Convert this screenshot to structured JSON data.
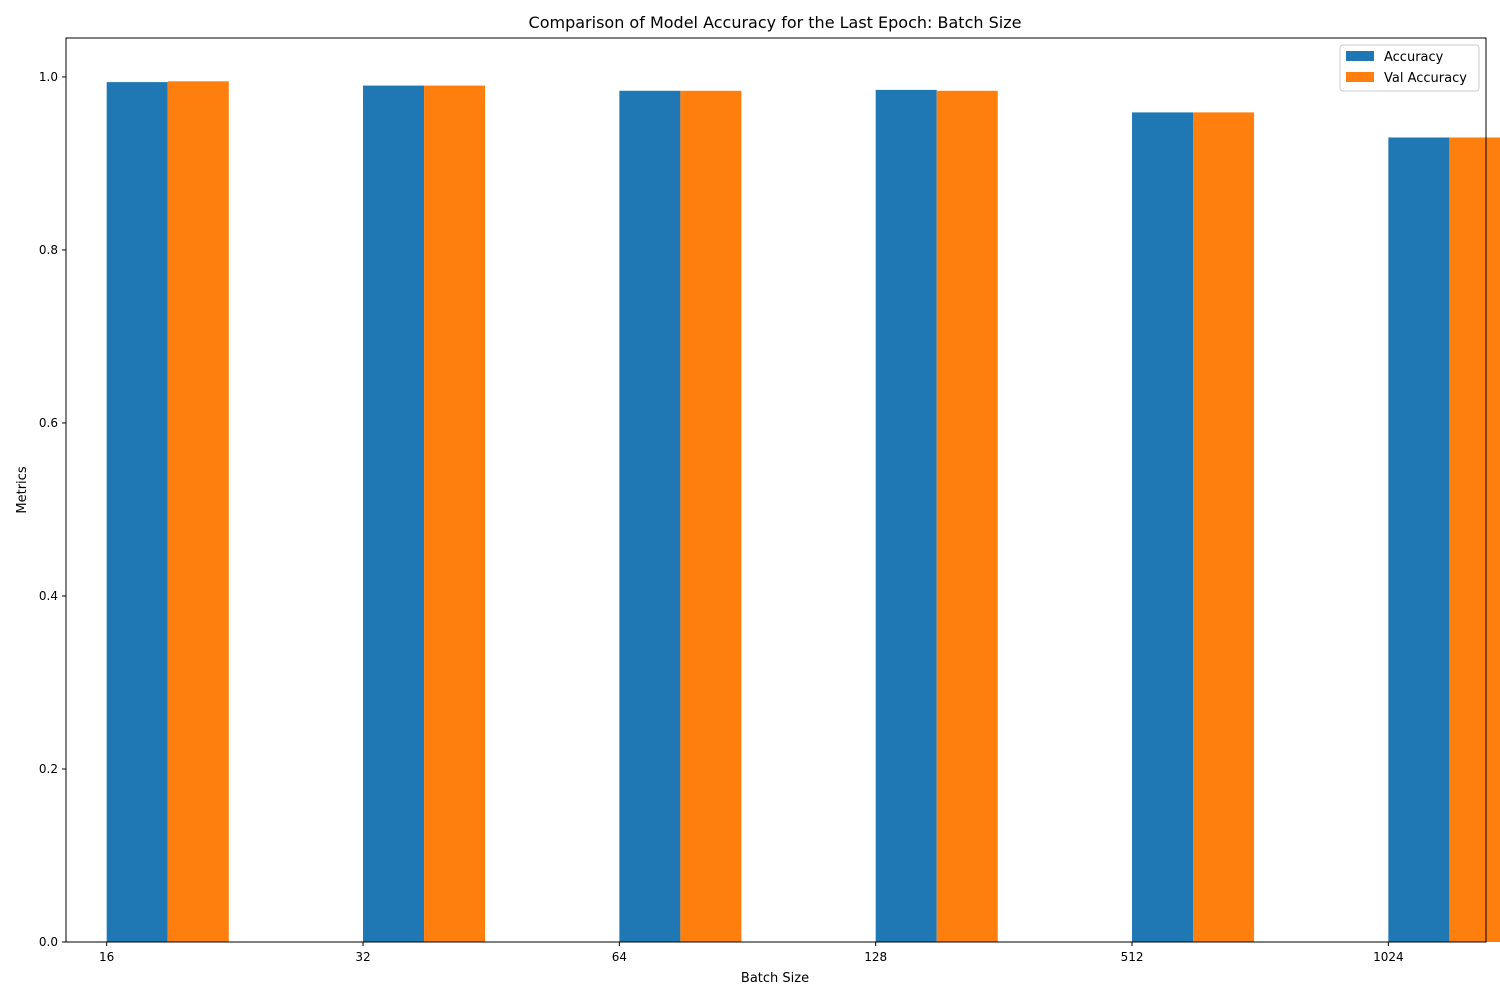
{
  "chart_data": {
    "type": "bar",
    "title": "Comparison of Model Accuracy for the Last Epoch: Batch Size",
    "xlabel": "Batch Size",
    "ylabel": "Metrics",
    "categories": [
      "16",
      "32",
      "64",
      "128",
      "512",
      "1024"
    ],
    "series": [
      {
        "name": "Accuracy",
        "color": "#1f77b4",
        "values": [
          0.994,
          0.99,
          0.984,
          0.985,
          0.959,
          0.93
        ]
      },
      {
        "name": "Val Accuracy",
        "color": "#ff7f0e",
        "values": [
          0.995,
          0.99,
          0.984,
          0.984,
          0.959,
          0.93
        ]
      }
    ],
    "ylim": [
      0,
      1.045
    ],
    "yticks": [
      "0.0",
      "0.2",
      "0.4",
      "0.6",
      "0.8",
      "1.0"
    ],
    "grid": false,
    "legend_position": "top-right"
  }
}
